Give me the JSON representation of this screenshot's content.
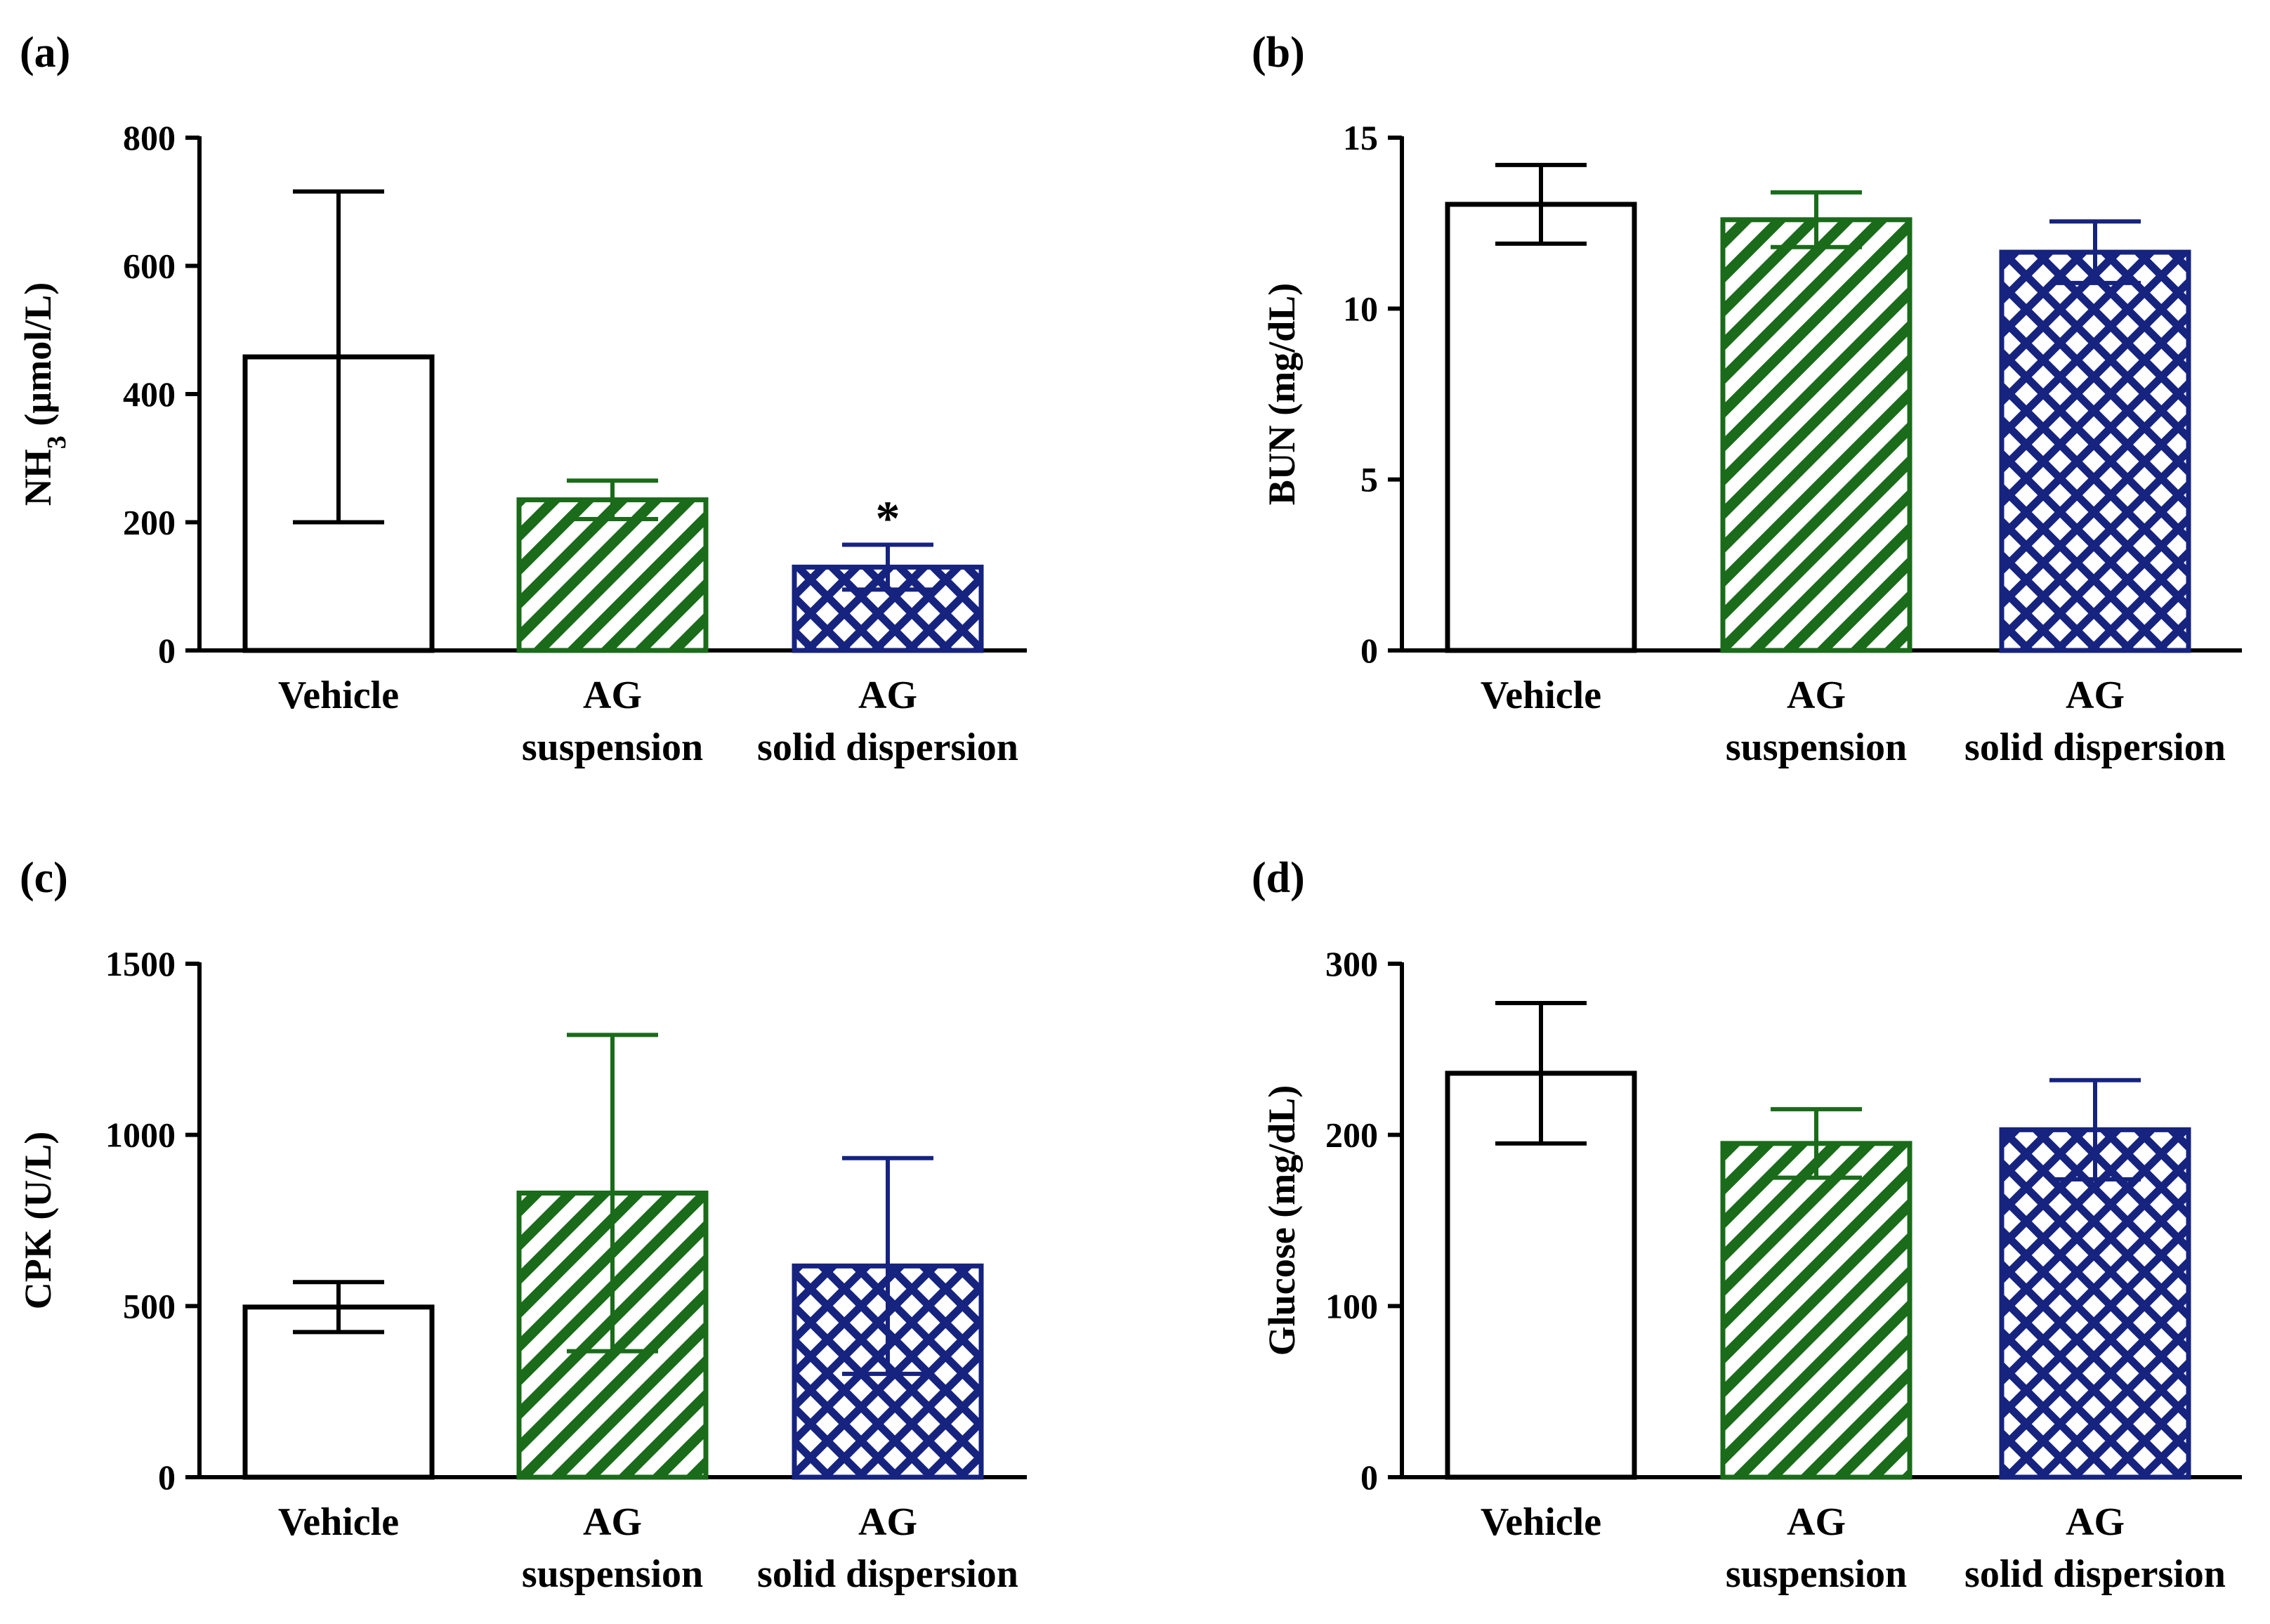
{
  "categories": [
    {
      "line1": "Vehicle",
      "line2": ""
    },
    {
      "line1": "AG",
      "line2": "suspension"
    },
    {
      "line1": "AG",
      "line2": "solid dispersion"
    }
  ],
  "series_styles": [
    {
      "fill": "none",
      "color": "#000000"
    },
    {
      "fill": "diagonal-stripes",
      "color": "#1a6b1a"
    },
    {
      "fill": "crosshatch-diamond",
      "color": "#16237f"
    }
  ],
  "panels": [
    {
      "panel_label": "(a)",
      "ylabel": "NH3 (µmol/L)",
      "ylabel_main": "NH",
      "ylabel_sub": "3",
      "ylabel_rest": " (µmol/L)",
      "yticks": [
        "0",
        "200",
        "400",
        "600",
        "800"
      ]
    },
    {
      "panel_label": "(b)",
      "ylabel": "BUN (mg/dL)",
      "yticks": [
        "0",
        "5",
        "10",
        "15"
      ]
    },
    {
      "panel_label": "(c)",
      "ylabel": "CPK (U/L)",
      "yticks": [
        "0",
        "500",
        "1000",
        "1500"
      ]
    },
    {
      "panel_label": "(d)",
      "ylabel": "Glucose (mg/dL)",
      "yticks": [
        "0",
        "100",
        "200",
        "300"
      ]
    }
  ],
  "chart_data": [
    {
      "type": "bar",
      "categories": [
        "Vehicle",
        "AG suspension",
        "AG solid dispersion"
      ],
      "values": [
        458,
        235,
        130
      ],
      "error_plus": [
        258,
        30,
        35
      ],
      "error_minus": [
        258,
        30,
        35
      ],
      "annotations": [
        {
          "category": "AG solid dispersion",
          "text": "*"
        }
      ],
      "ylabel": "NH3 (µmol/L)",
      "ylim": [
        0,
        800
      ],
      "yticks": [
        0,
        200,
        400,
        600,
        800
      ]
    },
    {
      "type": "bar",
      "categories": [
        "Vehicle",
        "AG suspension",
        "AG solid dispersion"
      ],
      "values": [
        13.05,
        12.6,
        11.65
      ],
      "error_plus": [
        1.15,
        0.8,
        0.9
      ],
      "error_minus": [
        1.15,
        0.8,
        0.9
      ],
      "ylabel": "BUN (mg/dL)",
      "ylim": [
        0,
        15
      ],
      "yticks": [
        0,
        5,
        10,
        15
      ]
    },
    {
      "type": "bar",
      "categories": [
        "Vehicle",
        "AG suspension",
        "AG solid dispersion"
      ],
      "values": [
        497,
        830,
        617
      ],
      "error_plus": [
        73,
        462,
        315
      ],
      "error_minus": [
        73,
        462,
        315
      ],
      "ylabel": "CPK (U/L)",
      "ylim": [
        0,
        1500
      ],
      "yticks": [
        0,
        500,
        1000,
        1500
      ]
    },
    {
      "type": "bar",
      "categories": [
        "Vehicle",
        "AG suspension",
        "AG solid dispersion"
      ],
      "values": [
        236,
        195,
        203
      ],
      "error_plus": [
        41,
        20,
        29
      ],
      "error_minus": [
        41,
        20,
        29
      ],
      "ylabel": "Glucose (mg/dL)",
      "ylim": [
        0,
        300
      ],
      "yticks": [
        0,
        100,
        200,
        300
      ]
    }
  ]
}
